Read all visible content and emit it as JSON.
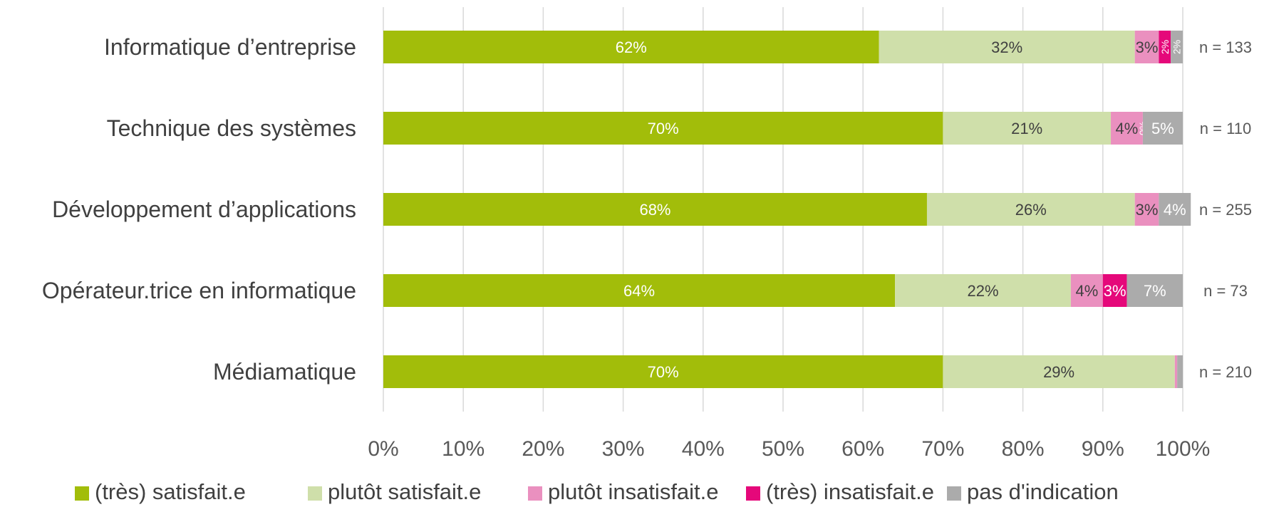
{
  "chart_data": {
    "type": "bar",
    "orientation": "horizontal",
    "stacked": "percent",
    "categories": [
      "Informatique d’entreprise",
      "Technique des systèmes",
      "Développement d’applications",
      "Opérateur.trice en informatique",
      "Médiamatique"
    ],
    "n_labels": [
      "n = 133",
      "n = 110",
      "n = 255",
      "n = 73",
      "n = 210"
    ],
    "series": [
      {
        "name": "(très) satisfait.e",
        "color": "#a2bd0a",
        "label_color": "#ffffff",
        "values": [
          62,
          70,
          68,
          64,
          70
        ],
        "labels": [
          "62%",
          "70%",
          "68%",
          "64%",
          "70%"
        ]
      },
      {
        "name": "plutôt satisfait.e",
        "color": "#cfdfaa",
        "label_color": "#404040",
        "values": [
          32,
          21,
          26,
          22,
          29
        ],
        "labels": [
          "32%",
          "21%",
          "26%",
          "22%",
          "29%"
        ]
      },
      {
        "name": "plutôt insatisfait.e",
        "color": "#ea90bf",
        "label_color": "#404040",
        "values": [
          3,
          4,
          3,
          4,
          0.3
        ],
        "labels": [
          "3%",
          "4%",
          "3%",
          "4%",
          ""
        ]
      },
      {
        "name": "(très) insatisfait.e",
        "color": "#e5087a",
        "label_color": "#ffffff",
        "values": [
          1.5,
          0,
          0,
          3,
          0
        ],
        "labels": [
          "2%",
          "0%",
          "",
          "3%",
          ""
        ]
      },
      {
        "name": "pas d'indication",
        "color": "#ababab",
        "label_color": "#ffffff",
        "values": [
          1.5,
          5,
          4,
          7,
          0.7
        ],
        "labels": [
          "2%",
          "5%",
          "4%",
          "7%",
          ""
        ]
      }
    ],
    "xlim": [
      0,
      100
    ],
    "x_ticks": [
      "0%",
      "10%",
      "20%",
      "30%",
      "40%",
      "50%",
      "60%",
      "70%",
      "80%",
      "90%",
      "100%"
    ],
    "grid": true,
    "legend_position": "bottom"
  }
}
